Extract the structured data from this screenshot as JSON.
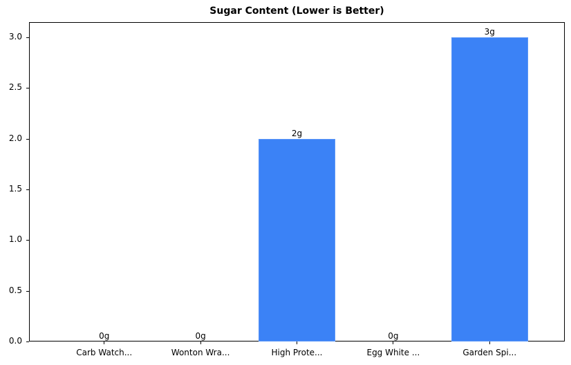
{
  "chart_data": {
    "type": "bar",
    "title": "Sugar Content (Lower is Better)",
    "xlabel": "",
    "ylabel": "",
    "categories": [
      "Carb Watch...",
      "Wonton Wra...",
      "High Prote...",
      "Egg White ...",
      "Garden Spi..."
    ],
    "values": [
      0,
      0,
      2,
      0,
      3
    ],
    "value_labels": [
      "0g",
      "0g",
      "2g",
      "0g",
      "3g"
    ],
    "ylim": [
      0,
      3.15
    ],
    "yticks": [
      "0.0",
      "0.5",
      "1.0",
      "1.5",
      "2.0",
      "2.5",
      "3.0"
    ],
    "grid": false,
    "legend": null,
    "bar_color": "#3b82f6"
  }
}
